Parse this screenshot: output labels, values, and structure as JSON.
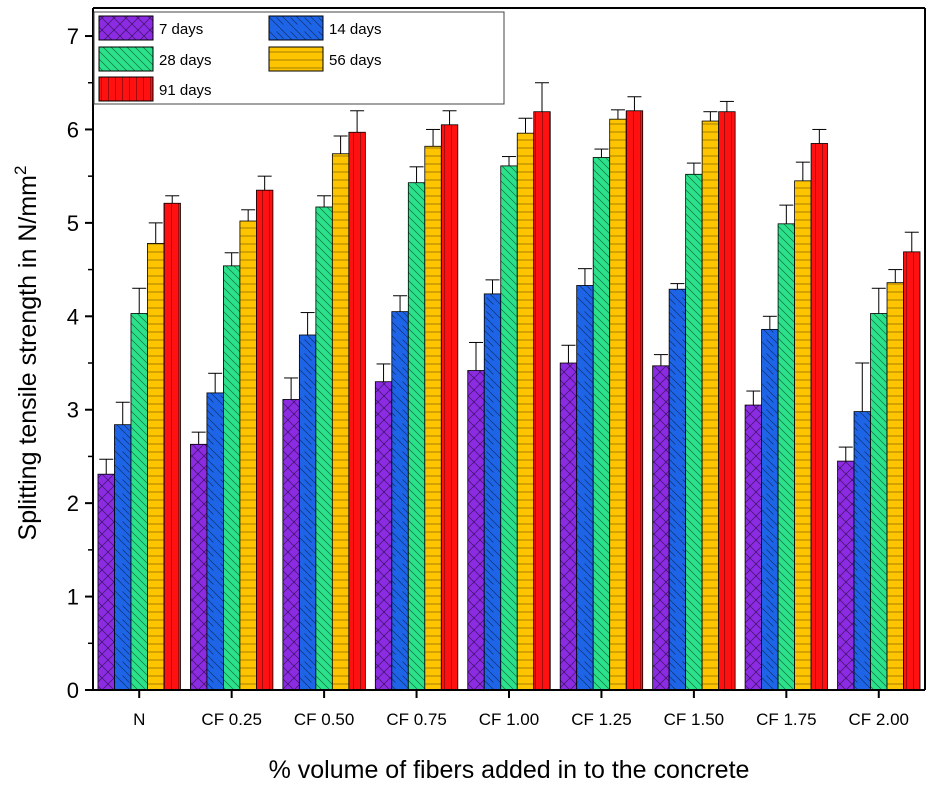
{
  "chart_data": {
    "type": "bar",
    "categories": [
      "N",
      "CF 0.25",
      "CF 0.50",
      "CF 0.75",
      "CF 1.00",
      "CF 1.25",
      "CF 1.50",
      "CF 1.75",
      "CF 2.00"
    ],
    "series": [
      {
        "name": "7 days",
        "color": "#8B2BE2",
        "pattern": "crosshatch",
        "values": [
          2.31,
          2.63,
          3.11,
          3.3,
          3.42,
          3.5,
          3.47,
          3.05,
          2.45
        ],
        "errors": [
          0.16,
          0.13,
          0.23,
          0.19,
          0.3,
          0.19,
          0.12,
          0.15,
          0.15
        ]
      },
      {
        "name": "14 days",
        "color": "#1E64E6",
        "pattern": "backslash",
        "values": [
          2.84,
          3.18,
          3.8,
          4.05,
          4.24,
          4.33,
          4.29,
          3.86,
          2.98
        ],
        "errors": [
          0.24,
          0.21,
          0.24,
          0.17,
          0.15,
          0.18,
          0.06,
          0.14,
          0.52
        ]
      },
      {
        "name": "28 days",
        "color": "#2BE28A",
        "pattern": "backslash-dense",
        "values": [
          4.03,
          4.54,
          5.17,
          5.43,
          5.61,
          5.7,
          5.52,
          4.99,
          4.03
        ],
        "errors": [
          0.27,
          0.14,
          0.12,
          0.17,
          0.1,
          0.09,
          0.12,
          0.2,
          0.27
        ]
      },
      {
        "name": "56 days",
        "color": "#FFC400",
        "pattern": "horizontal",
        "values": [
          4.78,
          5.02,
          5.74,
          5.82,
          5.96,
          6.11,
          6.09,
          5.45,
          4.36
        ],
        "errors": [
          0.22,
          0.12,
          0.19,
          0.18,
          0.16,
          0.1,
          0.1,
          0.2,
          0.14
        ]
      },
      {
        "name": "91 days",
        "color": "#FF1111",
        "pattern": "vertical",
        "values": [
          5.21,
          5.35,
          5.97,
          6.05,
          6.19,
          6.2,
          6.19,
          5.85,
          4.69
        ],
        "errors": [
          0.08,
          0.15,
          0.23,
          0.15,
          0.31,
          0.15,
          0.11,
          0.15,
          0.21
        ]
      }
    ],
    "xlabel": "% volume of fibers added in to the concrete",
    "ylabel": "Splitting tensile strength in N/mm²",
    "ylim": [
      0,
      7.3
    ],
    "yticks": [
      "0",
      "1",
      "2",
      "3",
      "4",
      "5",
      "6",
      "7"
    ],
    "grid": false,
    "legend_position": "top-left"
  }
}
